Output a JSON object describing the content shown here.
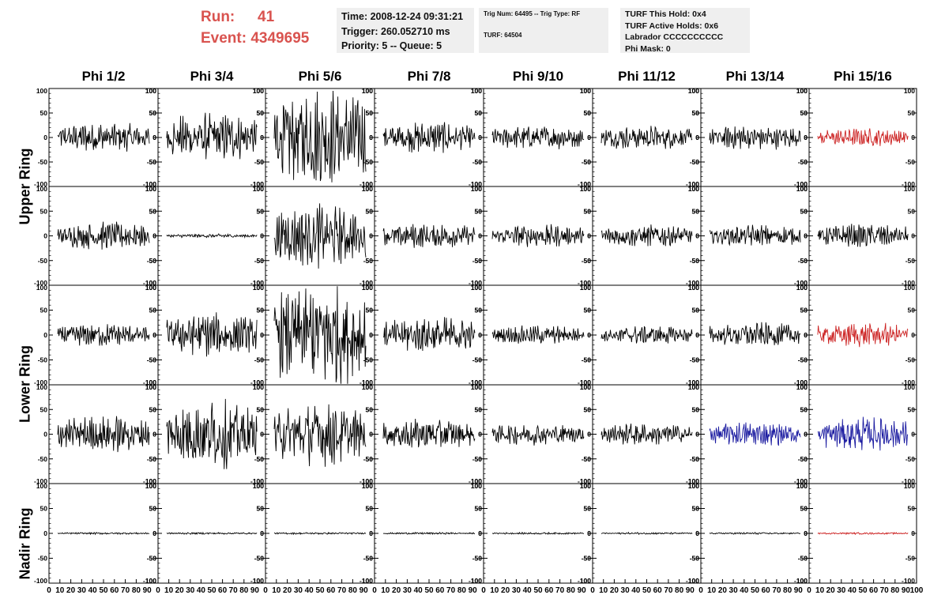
{
  "header": {
    "run_label": "Run:",
    "run_value": "41",
    "event_label": "Event:",
    "event_value": "4349695"
  },
  "info_time": {
    "time": "Time: 2008-12-24 09:31:21",
    "trigger": "Trigger: 260.052710 ms",
    "priority": "Priority: 5 -- Queue: 5"
  },
  "info_trig": {
    "trig": "Trig Num: 64495 -- Trig Type: RF",
    "turf": "TURF: 64504"
  },
  "info_turf": {
    "this_hold": "TURF This Hold: 0x4",
    "active_holds": "TURF Active Holds: 0x6",
    "labrador": "Labrador CCCCCCCCCC",
    "phi_mask": "Phi Mask: 0"
  },
  "phi_columns": [
    "Phi 1/2",
    "Phi 3/4",
    "Phi 5/6",
    "Phi 7/8",
    "Phi 9/10",
    "Phi 11/12",
    "Phi 13/14",
    "Phi 15/16"
  ],
  "ring_labels": {
    "upper": "Upper Ring",
    "lower": "Lower Ring",
    "nadir": "Nadir Ring"
  },
  "colors": {
    "run_text": "#d9534f",
    "trace_default": "#000000",
    "trace_red": "#cc2222",
    "trace_blue": "#1a1aa0",
    "info_bg": "#efefef"
  },
  "chart_data": {
    "type": "line",
    "ylim": [
      -100,
      100
    ],
    "xlim": [
      0,
      100
    ],
    "y_ticks": [
      "100",
      "50",
      "0",
      "-50",
      "-100"
    ],
    "x_ticks": [
      "0",
      "10",
      "20",
      "30",
      "40",
      "50",
      "60",
      "70",
      "80",
      "90",
      "100"
    ],
    "x_ticks_last_column": [
      "0",
      "10",
      "20",
      "30",
      "40",
      "50",
      "60",
      "70",
      "80",
      "90",
      "100"
    ],
    "rows": [
      {
        "amplitudes": [
          25,
          40,
          80,
          25,
          20,
          20,
          20,
          15
        ],
        "colors": [
          "black",
          "black",
          "black",
          "black",
          "black",
          "black",
          "black",
          "red"
        ]
      },
      {
        "amplitudes": [
          22,
          3,
          50,
          20,
          18,
          18,
          18,
          20
        ],
        "colors": [
          "black",
          "black",
          "black",
          "black",
          "black",
          "black",
          "black",
          "black"
        ]
      },
      {
        "amplitudes": [
          18,
          35,
          85,
          30,
          15,
          15,
          20,
          20
        ],
        "colors": [
          "black",
          "black",
          "black",
          "black",
          "black",
          "black",
          "black",
          "red"
        ]
      },
      {
        "amplitudes": [
          30,
          55,
          50,
          25,
          18,
          18,
          20,
          28
        ],
        "colors": [
          "black",
          "black",
          "black",
          "black",
          "black",
          "black",
          "blue",
          "blue"
        ]
      },
      {
        "amplitudes": [
          1.5,
          1.5,
          1.5,
          1.5,
          1.5,
          1.5,
          1.5,
          1.5
        ],
        "colors": [
          "black",
          "black",
          "black",
          "black",
          "black",
          "black",
          "black",
          "red"
        ]
      }
    ]
  }
}
